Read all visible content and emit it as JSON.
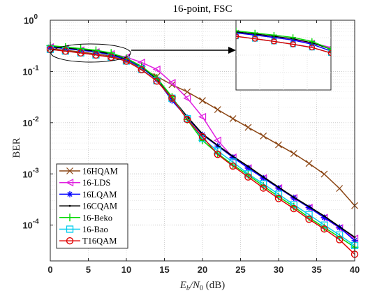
{
  "chart_data": {
    "type": "line",
    "title": "16-point, FSC",
    "xlabel": "E_b/N_0 (dB)",
    "xlabel_parts": {
      "base1": "E",
      "sub1": "b",
      "slash": "/N",
      "sub2": "0",
      "unit": " (dB)"
    },
    "ylabel": "BER",
    "xlim": [
      0,
      40
    ],
    "ylim_log": [
      2e-05,
      1
    ],
    "yscale": "log",
    "grid": true,
    "legend_position": "bottom-left",
    "x_ticks": [
      0,
      5,
      10,
      15,
      20,
      25,
      30,
      35,
      40
    ],
    "y_tick_exponents": [
      0,
      -1,
      -2,
      -3,
      -4
    ],
    "x": [
      0,
      2,
      4,
      6,
      8,
      10,
      12,
      14,
      16,
      18,
      20,
      22,
      24,
      26,
      28,
      30,
      32,
      34,
      36,
      38,
      40
    ],
    "series": [
      {
        "name": "16HQAM",
        "color": "#8B4513",
        "marker": "x",
        "values": [
          0.28,
          0.26,
          0.24,
          0.22,
          0.2,
          0.16,
          0.115,
          0.08,
          0.055,
          0.04,
          0.027,
          0.018,
          0.012,
          0.0081,
          0.0055,
          0.0037,
          0.0025,
          0.0016,
          0.00099,
          0.00052,
          0.00024
        ]
      },
      {
        "name": "16-LDS",
        "color": "#E020E0",
        "marker": "triangle-left",
        "values": [
          0.3,
          0.28,
          0.26,
          0.24,
          0.22,
          0.19,
          0.15,
          0.11,
          0.06,
          0.03,
          0.013,
          0.0045,
          0.0021,
          0.0013,
          0.00083,
          0.00053,
          0.00034,
          0.00022,
          0.00014,
          8.8e-05,
          5.5e-05
        ]
      },
      {
        "name": "16LQAM",
        "color": "#0000FF",
        "marker": "star",
        "values": [
          0.3,
          0.28,
          0.26,
          0.24,
          0.21,
          0.17,
          0.12,
          0.07,
          0.027,
          0.0125,
          0.0058,
          0.0035,
          0.0021,
          0.0013,
          0.00083,
          0.00053,
          0.00034,
          0.00022,
          0.00014,
          9e-05,
          5e-05
        ]
      },
      {
        "name": "16CQAM",
        "color": "#000000",
        "marker": "dot",
        "values": [
          0.31,
          0.29,
          0.27,
          0.25,
          0.22,
          0.18,
          0.125,
          0.072,
          0.03,
          0.013,
          0.006,
          0.0036,
          0.0022,
          0.0014,
          0.00087,
          0.00055,
          0.00035,
          0.00023,
          0.00015,
          9.3e-05,
          5.8e-05
        ]
      },
      {
        "name": "16-Beko",
        "color": "#00D800",
        "marker": "plus",
        "values": [
          0.32,
          0.3,
          0.28,
          0.26,
          0.23,
          0.18,
          0.125,
          0.075,
          0.032,
          0.0115,
          0.0045,
          0.0025,
          0.0015,
          0.00095,
          0.00058,
          0.00036,
          0.00023,
          0.00014,
          9e-05,
          5.8e-05,
          3.7e-05
        ]
      },
      {
        "name": "16-Bao",
        "color": "#00CCEE",
        "marker": "square",
        "values": [
          0.27,
          0.25,
          0.23,
          0.21,
          0.19,
          0.16,
          0.11,
          0.066,
          0.03,
          0.012,
          0.0049,
          0.0028,
          0.0017,
          0.001,
          0.00064,
          0.0004,
          0.00025,
          0.00016,
          0.0001,
          6.4e-05,
          4e-05
        ]
      },
      {
        "name": "T16QAM",
        "color": "#E00000",
        "marker": "circle",
        "values": [
          0.27,
          0.25,
          0.23,
          0.21,
          0.19,
          0.16,
          0.108,
          0.065,
          0.03,
          0.0115,
          0.0053,
          0.0024,
          0.00142,
          0.00087,
          0.00053,
          0.00033,
          0.00021,
          0.00013,
          8.4e-05,
          5.2e-05,
          2.7e-05
        ]
      }
    ],
    "inset": {
      "zoom_x_range": [
        0,
        10
      ],
      "zoom_y_log": [
        -1.3,
        -0.35
      ]
    }
  }
}
